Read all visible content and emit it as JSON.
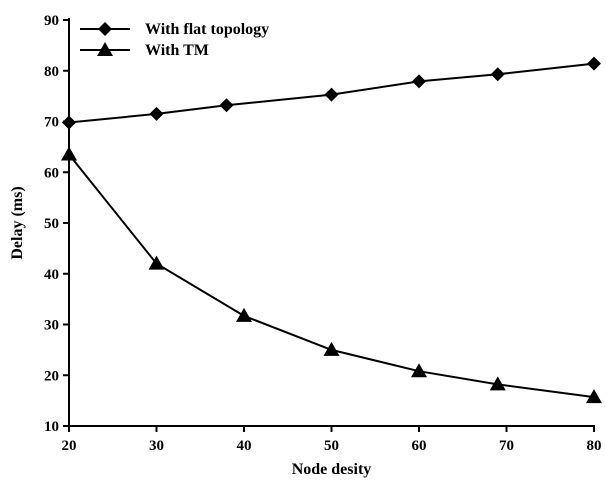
{
  "chart_data": {
    "type": "line",
    "xlabel": "Node desity",
    "ylabel": "Delay (ms)",
    "xlim": [
      20,
      80
    ],
    "ylim": [
      10,
      90
    ],
    "xticks": [
      "20",
      "30",
      "40",
      "50",
      "60",
      "70",
      "80"
    ],
    "yticks": [
      "10",
      "20",
      "30",
      "40",
      "50",
      "60",
      "70",
      "80",
      "90"
    ],
    "grid": false,
    "legend_position": "top-left",
    "series": [
      {
        "name": "With flat topology",
        "marker": "diamond",
        "color": "#000000",
        "x": [
          20,
          30,
          38,
          50,
          60,
          69,
          80
        ],
        "y": [
          69.8,
          71.5,
          73.2,
          75.3,
          77.9,
          79.3,
          81.4
        ]
      },
      {
        "name": "With TM",
        "marker": "triangle",
        "color": "#000000",
        "x": [
          20,
          30,
          40,
          50,
          60,
          69,
          80
        ],
        "y": [
          63.5,
          42,
          31.7,
          25,
          20.8,
          18.2,
          15.7
        ]
      }
    ]
  }
}
